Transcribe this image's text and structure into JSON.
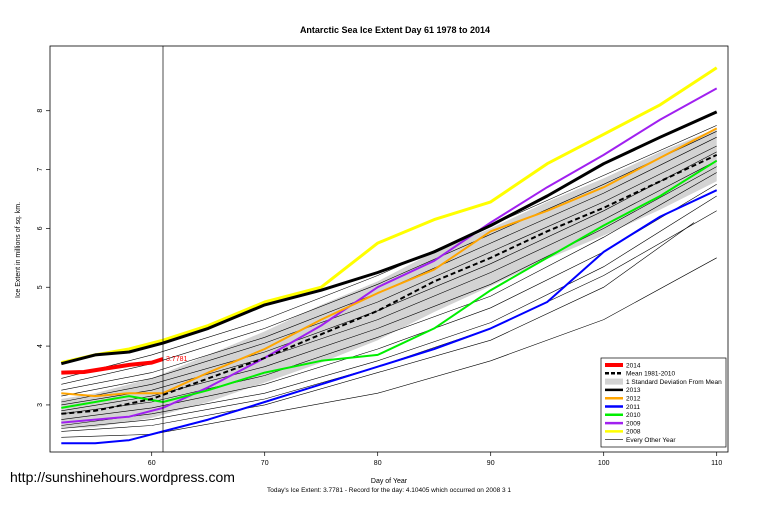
{
  "chart_data": {
    "type": "line",
    "title": "Antarctic Sea Ice Extent Day 61 1978 to 2014",
    "xlabel": "Day of Year",
    "ylabel": "Ice Extent in millions of sq. km.",
    "xlim": [
      51,
      111
    ],
    "ylim": [
      2.2,
      9.1
    ],
    "x_ticks": [
      60,
      70,
      80,
      90,
      100,
      110
    ],
    "y_ticks": [
      3,
      4,
      5,
      6,
      7,
      8
    ],
    "marker_day": 61,
    "annotation": "3.7781",
    "footer": "Today's Ice Extent: 3.7781  - Record for the day: 4.10405 which occurred on 2008 3 1",
    "legend_position": "bottom-right",
    "legend": [
      {
        "label": "2014",
        "color": "#ff0000",
        "style": "thick"
      },
      {
        "label": "Mean 1981-2010",
        "color": "#000000",
        "style": "dashed"
      },
      {
        "label": "1 Standard Deviation From Mean",
        "color": "#d3d3d3",
        "style": "band"
      },
      {
        "label": "2013",
        "color": "#000000",
        "style": "solid"
      },
      {
        "label": "2012",
        "color": "#ffa500",
        "style": "solid"
      },
      {
        "label": "2011",
        "color": "#0000ff",
        "style": "solid"
      },
      {
        "label": "2010",
        "color": "#00ee00",
        "style": "solid"
      },
      {
        "label": "2009",
        "color": "#a020f0",
        "style": "solid"
      },
      {
        "label": "2008",
        "color": "#ffff00",
        "style": "solid"
      },
      {
        "label": "Every Other Year",
        "color": "#000000",
        "style": "thin"
      }
    ],
    "series": [
      {
        "name": "2014",
        "color": "#ff0000",
        "width": 4,
        "x": [
          52,
          54,
          56,
          58,
          60,
          61
        ],
        "y": [
          3.55,
          3.56,
          3.62,
          3.68,
          3.72,
          3.78
        ]
      },
      {
        "name": "Mean 1981-2010",
        "color": "#000000",
        "width": 2,
        "dash": "5,3",
        "x": [
          52,
          55,
          60,
          65,
          70,
          75,
          80,
          85,
          90,
          95,
          100,
          105,
          110
        ],
        "y": [
          2.85,
          2.9,
          3.1,
          3.45,
          3.8,
          4.2,
          4.6,
          5.1,
          5.5,
          5.95,
          6.35,
          6.8,
          7.25
        ]
      },
      {
        "name": "2013",
        "color": "#000000",
        "width": 3,
        "x": [
          52,
          55,
          58,
          61,
          65,
          70,
          75,
          80,
          85,
          90,
          95,
          100,
          105,
          110
        ],
        "y": [
          3.7,
          3.85,
          3.9,
          4.05,
          4.3,
          4.7,
          4.95,
          5.25,
          5.6,
          6.05,
          6.55,
          7.1,
          7.55,
          7.98
        ]
      },
      {
        "name": "2012",
        "color": "#ffa500",
        "width": 2,
        "x": [
          52,
          55,
          58,
          61,
          65,
          70,
          75,
          80,
          85,
          90,
          95,
          100,
          105,
          110
        ],
        "y": [
          3.2,
          3.15,
          3.2,
          3.2,
          3.55,
          3.95,
          4.45,
          4.9,
          5.3,
          5.95,
          6.3,
          6.7,
          7.2,
          7.7
        ]
      },
      {
        "name": "2011",
        "color": "#0000ff",
        "width": 2,
        "x": [
          52,
          55,
          58,
          61,
          65,
          70,
          75,
          80,
          85,
          90,
          95,
          100,
          105,
          110
        ],
        "y": [
          2.35,
          2.35,
          2.4,
          2.55,
          2.75,
          3.05,
          3.35,
          3.65,
          3.95,
          4.3,
          4.75,
          5.6,
          6.2,
          6.65
        ]
      },
      {
        "name": "2010",
        "color": "#00ee00",
        "width": 2,
        "x": [
          52,
          55,
          58,
          61,
          65,
          70,
          75,
          80,
          85,
          90,
          95,
          100,
          105,
          110
        ],
        "y": [
          2.95,
          3.05,
          3.15,
          3.05,
          3.25,
          3.55,
          3.75,
          3.85,
          4.3,
          4.95,
          5.5,
          6.05,
          6.55,
          7.15
        ]
      },
      {
        "name": "2009",
        "color": "#a020f0",
        "width": 2,
        "x": [
          52,
          55,
          58,
          61,
          65,
          70,
          75,
          80,
          85,
          90,
          95,
          100,
          105,
          110
        ],
        "y": [
          2.7,
          2.75,
          2.8,
          2.95,
          3.3,
          3.8,
          4.35,
          5.0,
          5.45,
          6.1,
          6.7,
          7.25,
          7.85,
          8.38
        ]
      },
      {
        "name": "2008",
        "color": "#ffff00",
        "width": 3,
        "x": [
          52,
          55,
          58,
          61,
          65,
          70,
          75,
          80,
          85,
          90,
          95,
          100,
          105,
          110
        ],
        "y": [
          3.72,
          3.85,
          3.95,
          4.1,
          4.35,
          4.75,
          5.0,
          5.75,
          6.15,
          6.45,
          7.1,
          7.6,
          8.1,
          8.73
        ]
      }
    ],
    "other_years": [
      {
        "x": [
          52,
          60,
          70,
          80,
          90,
          100,
          110
        ],
        "y": [
          2.45,
          2.5,
          2.85,
          3.2,
          3.75,
          4.45,
          5.5
        ]
      },
      {
        "x": [
          52,
          60,
          70,
          80,
          90,
          100,
          108
        ],
        "y": [
          2.55,
          2.65,
          3.0,
          3.55,
          4.1,
          5.0,
          6.1
        ]
      },
      {
        "x": [
          52,
          60,
          70,
          80,
          90,
          100,
          110
        ],
        "y": [
          2.65,
          2.85,
          3.2,
          3.75,
          4.4,
          5.35,
          6.55
        ]
      },
      {
        "x": [
          52,
          60,
          70,
          80,
          90,
          100,
          110
        ],
        "y": [
          2.75,
          2.95,
          3.35,
          3.95,
          4.65,
          5.6,
          6.75
        ]
      },
      {
        "x": [
          52,
          60,
          70,
          80,
          90,
          100,
          110
        ],
        "y": [
          2.85,
          3.05,
          3.5,
          4.15,
          4.85,
          5.85,
          6.95
        ]
      },
      {
        "x": [
          52,
          60,
          70,
          80,
          90,
          100,
          110
        ],
        "y": [
          2.9,
          3.15,
          3.65,
          4.3,
          5.05,
          6.0,
          7.05
        ]
      },
      {
        "x": [
          52,
          60,
          70,
          80,
          90,
          100,
          110
        ],
        "y": [
          3.0,
          3.25,
          3.8,
          4.45,
          5.25,
          6.15,
          7.15
        ]
      },
      {
        "x": [
          52,
          60,
          70,
          80,
          90,
          100,
          110
        ],
        "y": [
          3.05,
          3.35,
          3.9,
          4.6,
          5.4,
          6.3,
          7.3
        ]
      },
      {
        "x": [
          52,
          60,
          70,
          80,
          90,
          100,
          110
        ],
        "y": [
          3.15,
          3.45,
          4.05,
          4.75,
          5.6,
          6.45,
          7.4
        ]
      },
      {
        "x": [
          52,
          60,
          70,
          80,
          90,
          100,
          110
        ],
        "y": [
          3.25,
          3.55,
          4.15,
          4.9,
          5.75,
          6.6,
          7.55
        ]
      },
      {
        "x": [
          52,
          60,
          70,
          80,
          90,
          100,
          110
        ],
        "y": [
          3.35,
          3.7,
          4.3,
          5.05,
          5.9,
          6.75,
          7.65
        ]
      },
      {
        "x": [
          52,
          60,
          70,
          80,
          90,
          100,
          110
        ],
        "y": [
          3.45,
          3.85,
          4.45,
          5.2,
          6.05,
          6.9,
          7.75
        ]
      },
      {
        "x": [
          52,
          60,
          70,
          80,
          90,
          100,
          110
        ],
        "y": [
          2.6,
          2.75,
          3.1,
          3.65,
          4.3,
          5.2,
          6.3
        ]
      }
    ],
    "sd_band": {
      "x": [
        52,
        55,
        60,
        65,
        70,
        75,
        80,
        85,
        90,
        95,
        100,
        105,
        110
      ],
      "upper": [
        3.1,
        3.2,
        3.45,
        3.85,
        4.25,
        4.7,
        5.1,
        5.6,
        6.0,
        6.45,
        6.85,
        7.3,
        7.7
      ],
      "lower": [
        2.6,
        2.62,
        2.78,
        3.05,
        3.38,
        3.72,
        4.1,
        4.58,
        5.02,
        5.48,
        5.88,
        6.32,
        6.8
      ]
    }
  },
  "watermark": "http://sunshinehours.wordpress.com"
}
